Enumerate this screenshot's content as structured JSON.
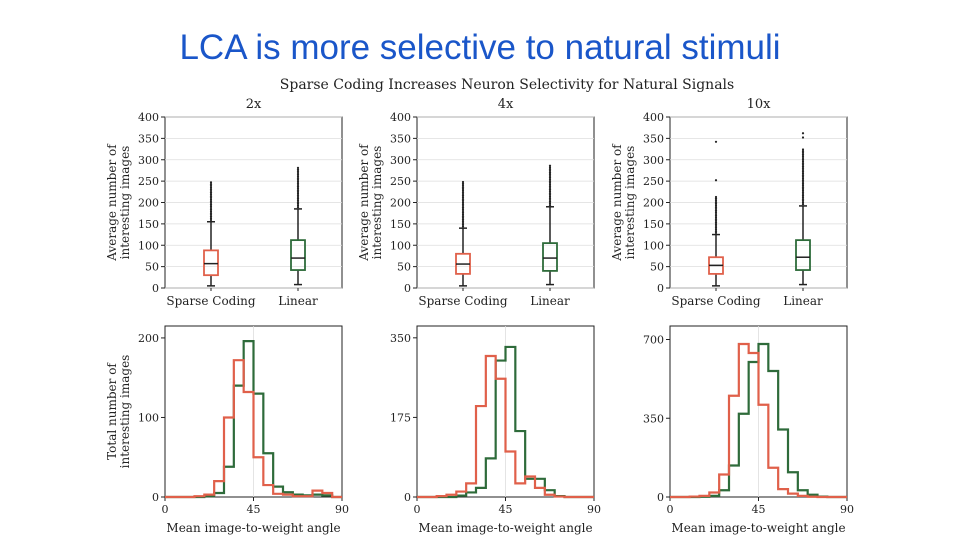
{
  "slide": {
    "title": "LCA is more selective to natural stimuli"
  },
  "figure": {
    "suptitle": "Sparse Coding Increases Neuron Selectivity for Natural Signals"
  },
  "colors": {
    "sparse": "#e0604a",
    "linear": "#2e6b3a",
    "grid": "#dddddd",
    "outlier": "#222222",
    "title": "#1a56c9"
  },
  "chart_data": [
    {
      "type": "box",
      "title": "2x",
      "ylabel": "Average number of interesting images",
      "categories": [
        "Sparse Coding",
        "Linear"
      ],
      "ylim": [
        0,
        400
      ],
      "yticks": [
        "0",
        "50",
        "100",
        "150",
        "200",
        "250",
        "300",
        "350",
        "400"
      ],
      "boxes": [
        {
          "name": "Sparse Coding",
          "whislo": 5,
          "q1": 30,
          "med": 57,
          "q3": 88,
          "whishi": 155,
          "outliers_to": 250
        },
        {
          "name": "Linear",
          "whislo": 8,
          "q1": 42,
          "med": 70,
          "q3": 112,
          "whishi": 185,
          "outliers_to": 282
        }
      ]
    },
    {
      "type": "box",
      "title": "4x",
      "ylabel": "Average number of interesting images",
      "categories": [
        "Sparse Coding",
        "Linear"
      ],
      "ylim": [
        0,
        400
      ],
      "yticks": [
        "0",
        "50",
        "100",
        "150",
        "200",
        "250",
        "300",
        "350",
        "400"
      ],
      "boxes": [
        {
          "name": "Sparse Coding",
          "whislo": 5,
          "q1": 33,
          "med": 56,
          "q3": 80,
          "whishi": 140,
          "outliers_to": 250
        },
        {
          "name": "Linear",
          "whislo": 8,
          "q1": 40,
          "med": 70,
          "q3": 105,
          "whishi": 190,
          "outliers_to": 287
        }
      ]
    },
    {
      "type": "box",
      "title": "10x",
      "ylabel": "Average number of interesting images",
      "categories": [
        "Sparse Coding",
        "Linear"
      ],
      "ylim": [
        0,
        400
      ],
      "yticks": [
        "0",
        "50",
        "100",
        "150",
        "200",
        "250",
        "300",
        "350",
        "400"
      ],
      "boxes": [
        {
          "name": "Sparse Coding",
          "whislo": 5,
          "q1": 33,
          "med": 53,
          "q3": 72,
          "whishi": 125,
          "outliers_to": 215,
          "far_outliers": [
            252,
            342
          ]
        },
        {
          "name": "Linear",
          "whislo": 8,
          "q1": 42,
          "med": 72,
          "q3": 112,
          "whishi": 192,
          "outliers_to": 325,
          "far_outliers": [
            352,
            362
          ]
        }
      ]
    },
    {
      "type": "histogram",
      "ylabel": "Total number of interesting images",
      "xlabel": "Mean image-to-weight angle",
      "xlim": [
        0,
        90
      ],
      "xticks": [
        "0",
        "45",
        "90"
      ],
      "ylim": [
        0,
        215
      ],
      "yticks": [
        "0",
        "100",
        "200"
      ],
      "bin_edges": [
        0,
        5,
        10,
        15,
        20,
        25,
        30,
        35,
        40,
        45,
        50,
        55,
        60,
        65,
        70,
        75,
        80,
        85,
        90
      ],
      "series": [
        {
          "name": "Sparse Coding",
          "values": [
            0,
            0,
            0,
            1,
            3,
            20,
            100,
            172,
            132,
            50,
            15,
            4,
            3,
            1,
            1,
            8,
            5,
            0
          ]
        },
        {
          "name": "Linear",
          "values": [
            0,
            0,
            0,
            0,
            1,
            5,
            38,
            140,
            196,
            130,
            55,
            13,
            6,
            3,
            2,
            3,
            2,
            0
          ]
        }
      ]
    },
    {
      "type": "histogram",
      "ylabel": "",
      "xlabel": "Mean image-to-weight angle",
      "xlim": [
        0,
        90
      ],
      "xticks": [
        "0",
        "45",
        "90"
      ],
      "ylim": [
        0,
        376
      ],
      "yticks": [
        "0",
        "175",
        "350"
      ],
      "bin_edges": [
        0,
        5,
        10,
        15,
        20,
        25,
        30,
        35,
        40,
        45,
        50,
        55,
        60,
        65,
        70,
        75,
        80,
        85,
        90
      ],
      "series": [
        {
          "name": "Sparse Coding",
          "values": [
            0,
            0,
            2,
            5,
            12,
            30,
            200,
            310,
            260,
            100,
            30,
            45,
            20,
            5,
            1,
            0,
            0,
            0
          ]
        },
        {
          "name": "Linear",
          "values": [
            0,
            0,
            0,
            0,
            3,
            10,
            20,
            85,
            300,
            330,
            145,
            40,
            40,
            15,
            2,
            0,
            0,
            0
          ]
        }
      ]
    },
    {
      "type": "histogram",
      "ylabel": "",
      "xlabel": "Mean image-to-weight angle",
      "xlim": [
        0,
        90
      ],
      "xticks": [
        "0",
        "45",
        "90"
      ],
      "ylim": [
        0,
        760
      ],
      "yticks": [
        "0",
        "350",
        "700"
      ],
      "bin_edges": [
        0,
        5,
        10,
        15,
        20,
        25,
        30,
        35,
        40,
        45,
        50,
        55,
        60,
        65,
        70,
        75,
        80,
        85,
        90
      ],
      "series": [
        {
          "name": "Sparse Coding",
          "values": [
            0,
            0,
            2,
            5,
            20,
            100,
            450,
            680,
            640,
            410,
            130,
            35,
            15,
            5,
            1,
            0,
            0,
            0
          ]
        },
        {
          "name": "Linear",
          "values": [
            0,
            0,
            0,
            1,
            5,
            30,
            140,
            370,
            600,
            680,
            560,
            300,
            110,
            30,
            10,
            2,
            0,
            0
          ]
        }
      ]
    }
  ]
}
